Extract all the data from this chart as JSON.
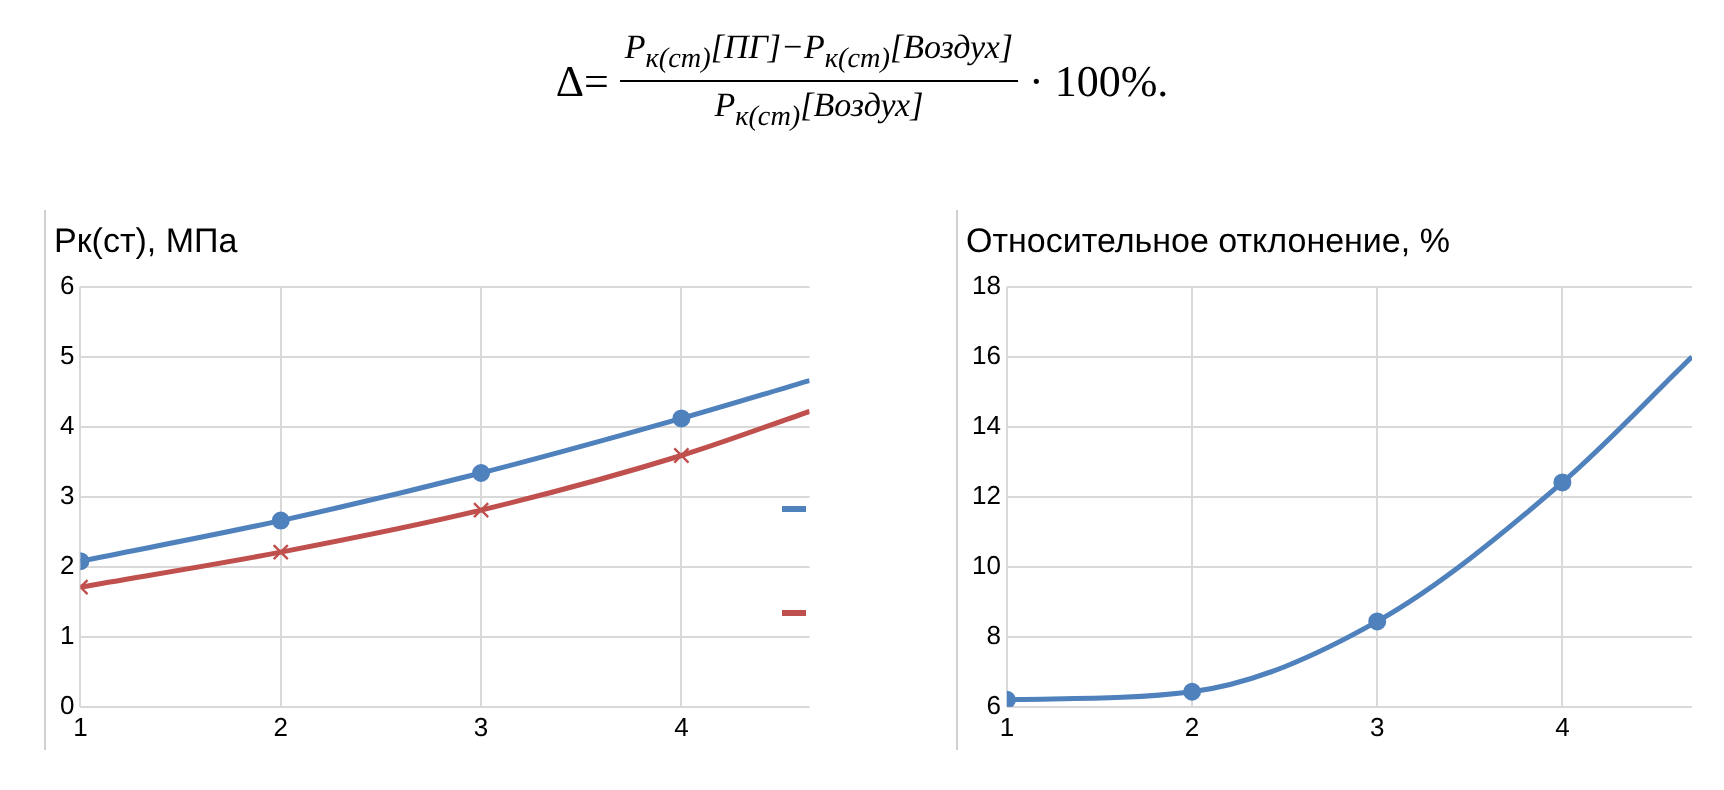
{
  "chart_data": [
    {
      "type": "line",
      "title": "Рк(ст), МПа",
      "annotations": [
        "Δ=",
        "P$_{к(ст)}$[ПГ]−P$_{к(ст)}$[Воздух]",
        "P$_{к(ст)}$[Воздух]",
        "· 100%."
      ],
      "x": [
        1,
        2,
        3,
        4,
        4.64
      ],
      "series": [
        {
          "color": "#4f81bd",
          "marker": "circle",
          "values": [
            2.08,
            2.66,
            3.34,
            4.12,
            4.66
          ]
        },
        {
          "color": "#c0504d",
          "marker": "cross",
          "values": [
            1.71,
            2.21,
            2.81,
            3.59,
            4.22
          ]
        }
      ],
      "xlim": [
        1,
        4.64
      ],
      "xticks": [
        1,
        2,
        3,
        4
      ],
      "ylim": [
        0,
        6
      ],
      "yticks": [
        0,
        1,
        2,
        3,
        4,
        5,
        6
      ],
      "grid": true
    },
    {
      "type": "line",
      "title": "Относительное отклонение, %",
      "x": [
        1,
        2,
        3,
        4,
        4.7
      ],
      "series": [
        {
          "color": "#4f81bd",
          "marker": "circle",
          "values": [
            6.2,
            6.43,
            8.44,
            12.41,
            16.0
          ]
        }
      ],
      "xlim": [
        1,
        4.7
      ],
      "xticks": [
        1,
        2,
        3,
        4
      ],
      "ylim": [
        6,
        18
      ],
      "yticks": [
        6,
        8,
        10,
        12,
        14,
        16,
        18
      ],
      "grid": true
    }
  ]
}
